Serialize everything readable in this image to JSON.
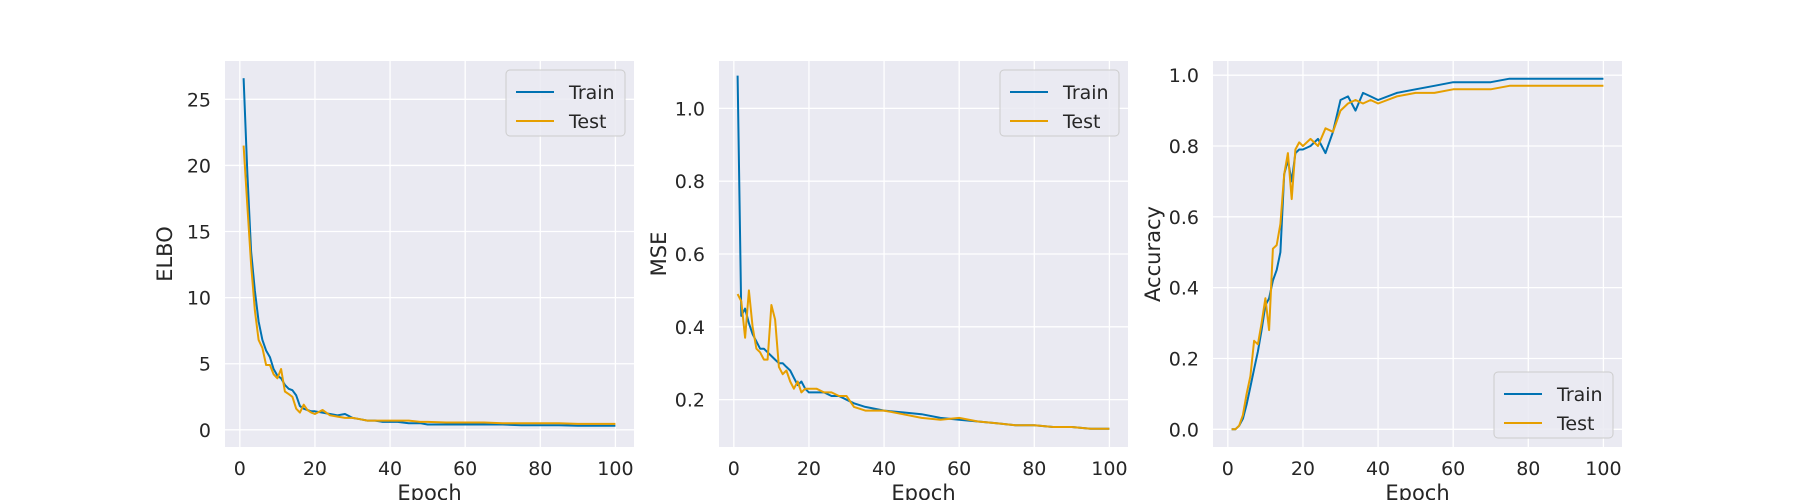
{
  "colors": {
    "train": "#0072B2",
    "test": "#E69F00",
    "panel_bg": "#EAEAF2",
    "grid": "#FFFFFF"
  },
  "chart_data": [
    {
      "type": "line",
      "xlabel": "Epoch",
      "ylabel": "ELBO",
      "xlim": [
        -3.95,
        104.95
      ],
      "ylim": [
        -1.3,
        27.9
      ],
      "xticks": [
        0,
        20,
        40,
        60,
        80,
        100
      ],
      "yticks": [
        0,
        5,
        10,
        15,
        20,
        25
      ],
      "legend_position": "upper right",
      "series": [
        {
          "name": "Train",
          "color_key": "train",
          "x": [
            1,
            2,
            3,
            4,
            5,
            6,
            7,
            8,
            9,
            10,
            11,
            12,
            13,
            14,
            15,
            16,
            17,
            18,
            19,
            20,
            22,
            24,
            26,
            28,
            30,
            32,
            34,
            36,
            38,
            40,
            42,
            45,
            48,
            50,
            55,
            60,
            65,
            70,
            75,
            80,
            85,
            90,
            95,
            100
          ],
          "y": [
            26.6,
            19.5,
            13.5,
            10.5,
            8.2,
            6.8,
            6.0,
            5.5,
            4.6,
            4.1,
            3.9,
            3.4,
            3.1,
            3.0,
            2.6,
            1.8,
            1.6,
            1.5,
            1.4,
            1.4,
            1.3,
            1.2,
            1.1,
            1.2,
            0.9,
            0.8,
            0.7,
            0.7,
            0.6,
            0.6,
            0.6,
            0.5,
            0.5,
            0.4,
            0.4,
            0.4,
            0.4,
            0.4,
            0.35,
            0.35,
            0.35,
            0.3,
            0.3,
            0.3
          ]
        },
        {
          "name": "Test",
          "color_key": "test",
          "x": [
            1,
            2,
            3,
            4,
            5,
            6,
            7,
            8,
            9,
            10,
            11,
            12,
            13,
            14,
            15,
            16,
            17,
            18,
            19,
            20,
            22,
            24,
            26,
            28,
            30,
            32,
            34,
            36,
            38,
            40,
            42,
            45,
            48,
            50,
            55,
            60,
            65,
            70,
            75,
            80,
            85,
            90,
            95,
            100
          ],
          "y": [
            21.5,
            17.0,
            12.5,
            9.0,
            6.8,
            6.2,
            4.9,
            4.9,
            4.2,
            3.9,
            4.6,
            2.9,
            2.7,
            2.5,
            1.6,
            1.3,
            1.9,
            1.5,
            1.3,
            1.2,
            1.5,
            1.1,
            1.0,
            0.9,
            0.9,
            0.8,
            0.7,
            0.7,
            0.7,
            0.7,
            0.7,
            0.7,
            0.6,
            0.6,
            0.55,
            0.55,
            0.55,
            0.5,
            0.5,
            0.5,
            0.5,
            0.45,
            0.45,
            0.45
          ]
        }
      ]
    },
    {
      "type": "line",
      "xlabel": "Epoch",
      "ylabel": "MSE",
      "xlim": [
        -3.95,
        104.95
      ],
      "ylim": [
        0.07,
        1.13
      ],
      "xticks": [
        0,
        20,
        40,
        60,
        80,
        100
      ],
      "yticks": [
        0.2,
        0.4,
        0.6,
        0.8,
        1.0
      ],
      "legend_position": "upper right",
      "series": [
        {
          "name": "Train",
          "color_key": "train",
          "x": [
            1,
            2,
            3,
            4,
            5,
            6,
            7,
            8,
            9,
            10,
            11,
            12,
            13,
            14,
            15,
            16,
            17,
            18,
            19,
            20,
            22,
            24,
            26,
            28,
            30,
            32,
            35,
            40,
            45,
            50,
            55,
            60,
            65,
            70,
            75,
            80,
            85,
            90,
            95,
            100
          ],
          "y": [
            1.09,
            0.43,
            0.45,
            0.41,
            0.38,
            0.36,
            0.34,
            0.34,
            0.33,
            0.32,
            0.31,
            0.3,
            0.3,
            0.29,
            0.28,
            0.26,
            0.24,
            0.25,
            0.23,
            0.22,
            0.22,
            0.22,
            0.21,
            0.21,
            0.2,
            0.19,
            0.18,
            0.17,
            0.165,
            0.16,
            0.15,
            0.145,
            0.14,
            0.135,
            0.13,
            0.13,
            0.125,
            0.125,
            0.12,
            0.12
          ]
        },
        {
          "name": "Test",
          "color_key": "test",
          "x": [
            1,
            2,
            3,
            4,
            5,
            6,
            7,
            8,
            9,
            10,
            11,
            12,
            13,
            14,
            15,
            16,
            17,
            18,
            19,
            20,
            22,
            24,
            26,
            28,
            30,
            32,
            35,
            40,
            45,
            50,
            55,
            60,
            65,
            70,
            75,
            80,
            85,
            90,
            95,
            100
          ],
          "y": [
            0.49,
            0.47,
            0.37,
            0.5,
            0.4,
            0.34,
            0.33,
            0.31,
            0.31,
            0.46,
            0.42,
            0.29,
            0.27,
            0.28,
            0.25,
            0.23,
            0.25,
            0.22,
            0.23,
            0.23,
            0.23,
            0.22,
            0.22,
            0.21,
            0.21,
            0.18,
            0.17,
            0.17,
            0.16,
            0.15,
            0.145,
            0.15,
            0.14,
            0.135,
            0.13,
            0.13,
            0.125,
            0.125,
            0.12,
            0.12
          ]
        }
      ]
    },
    {
      "type": "line",
      "xlabel": "Epoch",
      "ylabel": "Accuracy",
      "xlim": [
        -3.95,
        104.95
      ],
      "ylim": [
        -0.05,
        1.04
      ],
      "xticks": [
        0,
        20,
        40,
        60,
        80,
        100
      ],
      "yticks": [
        0.0,
        0.2,
        0.4,
        0.6,
        0.8,
        1.0
      ],
      "legend_position": "lower right",
      "series": [
        {
          "name": "Train",
          "color_key": "train",
          "x": [
            1,
            2,
            3,
            4,
            5,
            6,
            7,
            8,
            9,
            10,
            11,
            12,
            13,
            14,
            15,
            16,
            17,
            18,
            19,
            20,
            22,
            24,
            26,
            28,
            30,
            32,
            34,
            36,
            38,
            40,
            45,
            50,
            55,
            60,
            65,
            70,
            75,
            80,
            85,
            90,
            95,
            100
          ],
          "y": [
            0.0,
            0.0,
            0.01,
            0.03,
            0.07,
            0.12,
            0.17,
            0.22,
            0.28,
            0.35,
            0.37,
            0.42,
            0.45,
            0.5,
            0.72,
            0.76,
            0.7,
            0.78,
            0.79,
            0.79,
            0.8,
            0.82,
            0.78,
            0.84,
            0.93,
            0.94,
            0.9,
            0.95,
            0.94,
            0.93,
            0.95,
            0.96,
            0.97,
            0.98,
            0.98,
            0.98,
            0.99,
            0.99,
            0.99,
            0.99,
            0.99,
            0.99
          ]
        },
        {
          "name": "Test",
          "color_key": "test",
          "x": [
            1,
            2,
            3,
            4,
            5,
            6,
            7,
            8,
            9,
            10,
            11,
            12,
            13,
            14,
            15,
            16,
            17,
            18,
            19,
            20,
            22,
            24,
            26,
            28,
            30,
            32,
            34,
            36,
            38,
            40,
            45,
            50,
            55,
            60,
            65,
            70,
            75,
            80,
            85,
            90,
            95,
            100
          ],
          "y": [
            0.0,
            0.0,
            0.01,
            0.04,
            0.1,
            0.15,
            0.25,
            0.24,
            0.3,
            0.37,
            0.28,
            0.51,
            0.52,
            0.58,
            0.72,
            0.78,
            0.65,
            0.79,
            0.81,
            0.8,
            0.82,
            0.8,
            0.85,
            0.84,
            0.9,
            0.92,
            0.93,
            0.92,
            0.93,
            0.92,
            0.94,
            0.95,
            0.95,
            0.96,
            0.96,
            0.96,
            0.97,
            0.97,
            0.97,
            0.97,
            0.97,
            0.97
          ]
        }
      ]
    }
  ]
}
